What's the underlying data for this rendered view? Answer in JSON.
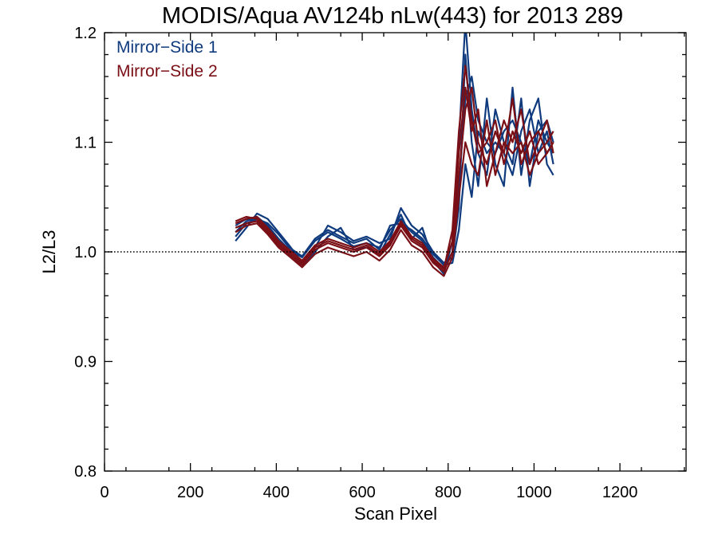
{
  "chart_data": {
    "type": "line",
    "title": "MODIS/Aqua AV124b nLw(443) for 2013 289",
    "xlabel": "Scan Pixel",
    "ylabel": "L2/L3",
    "xlim": [
      0,
      1354
    ],
    "ylim": [
      0.8,
      1.2
    ],
    "x_ticks": [
      0,
      200,
      400,
      600,
      800,
      1000,
      1200
    ],
    "x_tick_labels": [
      "0",
      "200",
      "400",
      "600",
      "800",
      "1000",
      "1200"
    ],
    "y_ticks": [
      0.8,
      0.9,
      1.0,
      1.1,
      1.2
    ],
    "y_tick_labels": [
      "0.8",
      "0.9",
      "1.0",
      "1.1",
      "1.2"
    ],
    "reference_line": {
      "y": 1.0,
      "style": "dotted"
    },
    "grid": false,
    "legend": {
      "placement": "top-left",
      "entries": [
        "Mirror−Side 1",
        "Mirror−Side 2"
      ]
    },
    "colors": {
      "Mirror-Side 1": "#0f3a7d",
      "Mirror-Side 2": "#7a0f16"
    },
    "x": [
      305,
      330,
      355,
      380,
      405,
      430,
      460,
      490,
      520,
      550,
      580,
      610,
      640,
      665,
      690,
      715,
      740,
      765,
      790,
      810,
      825,
      840,
      855,
      870,
      890,
      910,
      930,
      950,
      970,
      990,
      1010,
      1030,
      1045
    ],
    "series": [
      {
        "name": "Mirror−Side 1",
        "values": [
          1.018,
          1.028,
          1.032,
          1.024,
          1.012,
          1.002,
          0.995,
          1.01,
          1.018,
          1.012,
          1.005,
          1.008,
          1.004,
          1.02,
          1.03,
          1.018,
          1.01,
          0.995,
          0.985,
          1.0,
          1.06,
          1.14,
          1.16,
          1.12,
          1.1,
          1.09,
          1.11,
          1.12,
          1.1,
          1.08,
          1.12,
          1.1,
          1.09
        ]
      },
      {
        "name": "Mirror−Side 1",
        "values": [
          1.01,
          1.022,
          1.035,
          1.03,
          1.018,
          1.006,
          0.99,
          1.004,
          1.024,
          1.018,
          1.01,
          1.014,
          1.008,
          1.012,
          1.04,
          1.024,
          1.016,
          1.0,
          0.99,
          0.995,
          1.04,
          1.18,
          1.1,
          1.06,
          1.14,
          1.08,
          1.06,
          1.15,
          1.07,
          1.12,
          1.14,
          1.08,
          1.07
        ]
      },
      {
        "name": "Mirror−Side 1",
        "values": [
          1.024,
          1.03,
          1.028,
          1.02,
          1.008,
          0.998,
          0.988,
          1.0,
          1.014,
          1.022,
          1.002,
          1.004,
          0.998,
          1.016,
          1.034,
          1.012,
          1.022,
          0.992,
          0.98,
          1.01,
          1.1,
          1.21,
          1.13,
          1.09,
          1.07,
          1.13,
          1.1,
          1.08,
          1.14,
          1.06,
          1.11,
          1.12,
          1.1
        ]
      },
      {
        "name": "Mirror−Side 1",
        "values": [
          1.014,
          1.026,
          1.03,
          1.026,
          1.016,
          1.004,
          0.996,
          1.012,
          1.02,
          1.014,
          1.008,
          1.012,
          1.002,
          1.024,
          1.026,
          1.02,
          1.012,
          0.998,
          0.988,
          0.99,
          1.02,
          1.08,
          1.05,
          1.11,
          1.09,
          1.1,
          1.09,
          1.07,
          1.11,
          1.13,
          1.09,
          1.11,
          1.08
        ]
      },
      {
        "name": "Mirror−Side 2",
        "values": [
          1.022,
          1.026,
          1.028,
          1.018,
          1.006,
          0.998,
          0.988,
          1.002,
          1.008,
          1.004,
          1.0,
          1.004,
          0.996,
          1.006,
          1.024,
          1.01,
          1.004,
          0.99,
          0.982,
          1.0,
          1.07,
          1.13,
          1.15,
          1.1,
          1.08,
          1.11,
          1.09,
          1.14,
          1.08,
          1.1,
          1.11,
          1.09,
          1.1
        ]
      },
      {
        "name": "Mirror−Side 2",
        "values": [
          1.026,
          1.03,
          1.032,
          1.022,
          1.01,
          1.002,
          0.992,
          1.006,
          1.012,
          1.008,
          1.004,
          1.008,
          1.0,
          1.01,
          1.028,
          1.014,
          1.008,
          0.994,
          0.986,
          1.01,
          1.09,
          1.15,
          1.11,
          1.13,
          1.06,
          1.09,
          1.12,
          1.1,
          1.13,
          1.08,
          1.1,
          1.12,
          1.09
        ]
      },
      {
        "name": "Mirror−Side 2",
        "values": [
          1.018,
          1.024,
          1.026,
          1.016,
          1.004,
          0.996,
          0.986,
          0.998,
          1.004,
          1.0,
          0.996,
          1.0,
          0.992,
          1.002,
          1.02,
          1.006,
          1.0,
          0.986,
          0.978,
          0.995,
          1.05,
          1.1,
          1.08,
          1.07,
          1.12,
          1.07,
          1.1,
          1.09,
          1.1,
          1.07,
          1.09,
          1.1,
          1.11
        ]
      },
      {
        "name": "Mirror−Side 2",
        "values": [
          1.028,
          1.032,
          1.03,
          1.02,
          1.008,
          1.0,
          0.99,
          1.004,
          1.01,
          1.006,
          1.002,
          1.006,
          0.998,
          1.008,
          1.026,
          1.012,
          1.006,
          0.992,
          0.984,
          1.02,
          1.11,
          1.17,
          1.12,
          1.09,
          1.1,
          1.12,
          1.08,
          1.11,
          1.09,
          1.11,
          1.08,
          1.09,
          1.1
        ]
      }
    ]
  }
}
